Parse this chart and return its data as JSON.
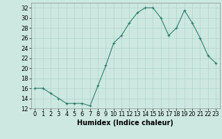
{
  "x": [
    0,
    1,
    2,
    3,
    4,
    5,
    6,
    7,
    8,
    9,
    10,
    11,
    12,
    13,
    14,
    15,
    16,
    17,
    18,
    19,
    20,
    21,
    22,
    23
  ],
  "y": [
    16,
    16,
    15,
    14,
    13,
    13,
    13,
    12.5,
    16.5,
    20.5,
    25,
    26.5,
    29,
    31,
    32,
    32,
    30,
    26.5,
    28,
    31.5,
    29,
    26,
    22.5,
    21
  ],
  "line_color": "#2e7d6e",
  "marker": "+",
  "bg_color": "#cde8e0",
  "grid_color": "#b0d4cc",
  "xlabel": "Humidex (Indice chaleur)",
  "xlim": [
    -0.5,
    23.5
  ],
  "ylim": [
    12,
    33
  ],
  "yticks": [
    12,
    14,
    16,
    18,
    20,
    22,
    24,
    26,
    28,
    30,
    32
  ],
  "xticks": [
    0,
    1,
    2,
    3,
    4,
    5,
    6,
    7,
    8,
    9,
    10,
    11,
    12,
    13,
    14,
    15,
    16,
    17,
    18,
    19,
    20,
    21,
    22,
    23
  ],
  "label_fontsize": 7,
  "tick_fontsize": 6
}
